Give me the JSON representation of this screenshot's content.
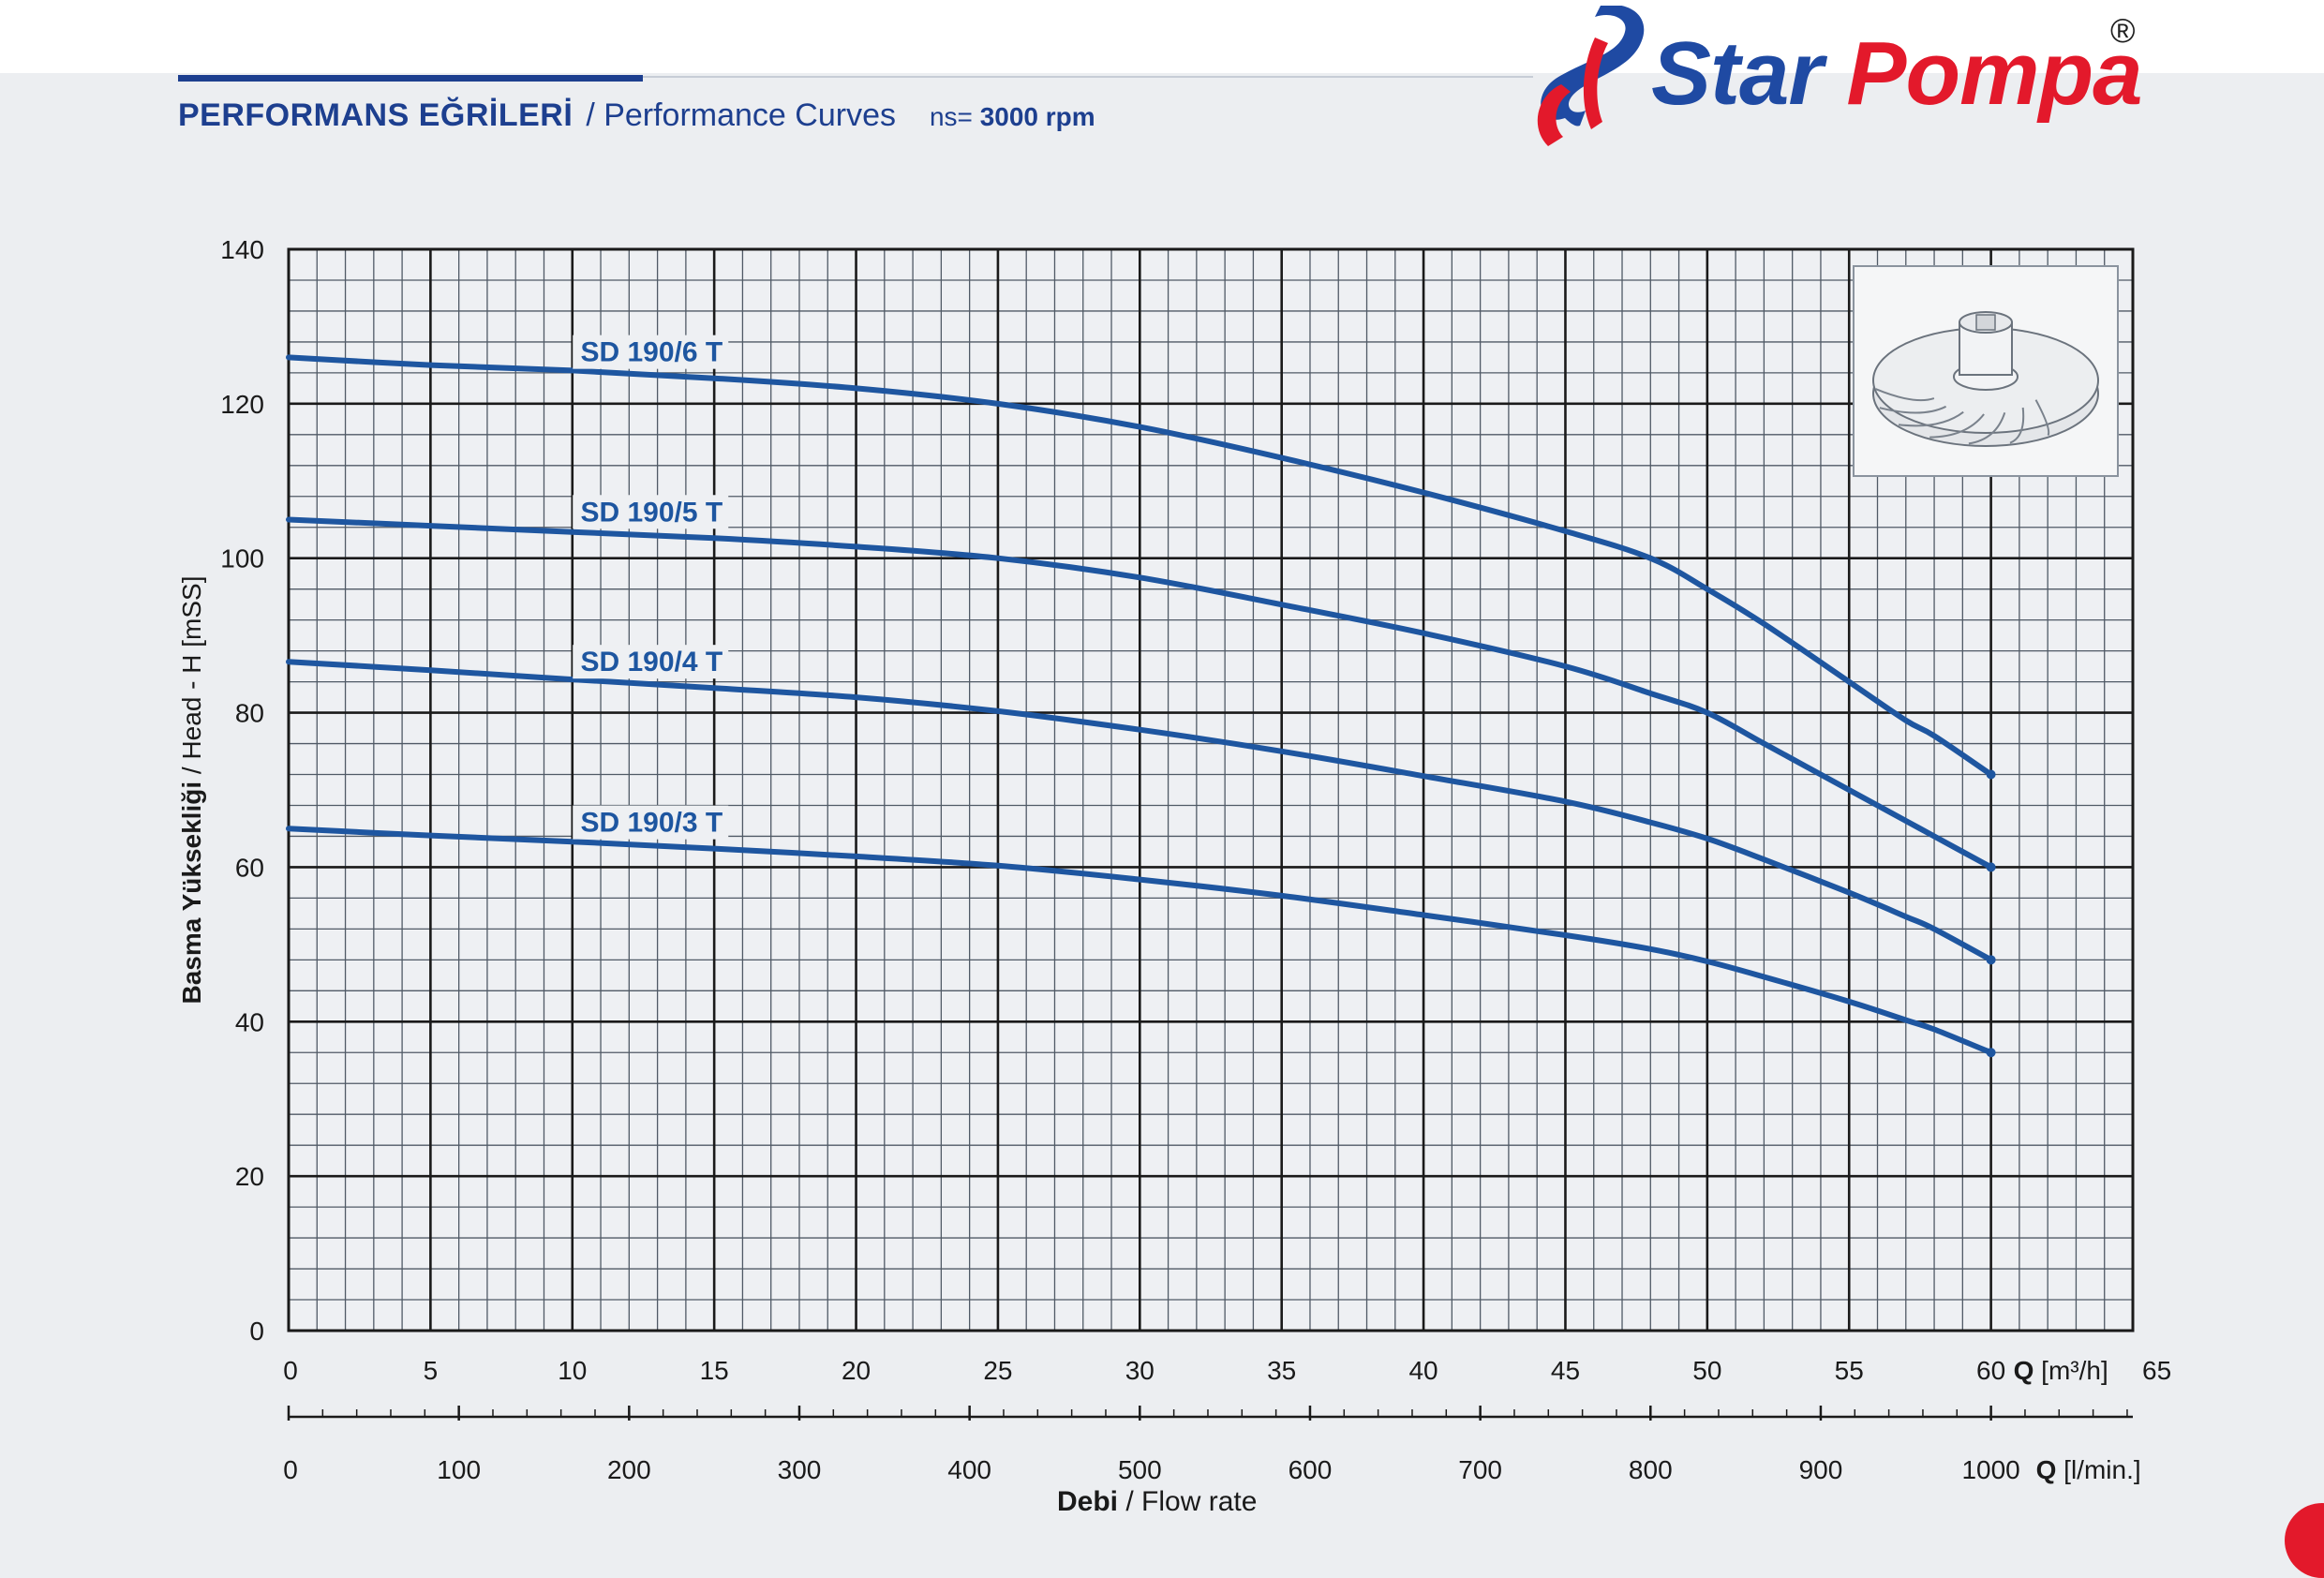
{
  "header": {
    "title_tr": "PERFORMANS EĞRİLERİ",
    "title_en": "/ Performance Curves",
    "speed_label": "ns=",
    "speed_value": "3000 rpm"
  },
  "brand": {
    "name_part1": "Star",
    "name_part2": "Pompa",
    "registered": "®",
    "colors": {
      "blue": "#1f4aa3",
      "red": "#e3192b"
    }
  },
  "inset": {
    "icon": "impeller-icon"
  },
  "chart_data": {
    "type": "line",
    "title": "",
    "ylabel_bold": "Basma Yüksekliği",
    "ylabel_rest": "/ Head - H [mSS]",
    "xlabel_bold": "Debi",
    "xlabel_rest": "/ Flow rate",
    "x_unit_label": "Q",
    "x_unit": "[m³/h]",
    "x2_unit_label": "Q",
    "x2_unit": "[l/min.]",
    "xlim": [
      0,
      65
    ],
    "ylim": [
      0,
      140
    ],
    "x_ticks": [
      0,
      5,
      10,
      15,
      20,
      25,
      30,
      35,
      40,
      45,
      50,
      55,
      60,
      65
    ],
    "y_ticks": [
      0,
      20,
      40,
      60,
      80,
      100,
      120,
      140
    ],
    "x2_ticks": [
      0,
      100,
      200,
      300,
      400,
      500,
      600,
      700,
      800,
      900,
      1000
    ],
    "grid": true,
    "line_color": "#1e56a0",
    "series": [
      {
        "name": "SD 190/6 T",
        "x": [
          0,
          5,
          10,
          15,
          20,
          25,
          30,
          35,
          40,
          45,
          48,
          50,
          52,
          55,
          57,
          58,
          60
        ],
        "y": [
          126,
          125,
          124.3,
          123.3,
          122,
          120,
          117,
          113,
          108.5,
          103.5,
          100,
          96,
          91.5,
          84,
          79,
          77,
          72
        ]
      },
      {
        "name": "SD 190/5 T",
        "x": [
          0,
          5,
          10,
          15,
          20,
          25,
          30,
          35,
          40,
          45,
          48,
          50,
          52,
          55,
          57,
          58,
          60
        ],
        "y": [
          105,
          104.2,
          103.4,
          102.6,
          101.5,
          100,
          97.5,
          94,
          90.3,
          86,
          82.5,
          80,
          76,
          70,
          66,
          64,
          60
        ]
      },
      {
        "name": "SD 190/4 T",
        "x": [
          0,
          5,
          10,
          15,
          20,
          25,
          30,
          35,
          40,
          45,
          48,
          50,
          52,
          55,
          57,
          58,
          60
        ],
        "y": [
          86.6,
          85.5,
          84.3,
          83.2,
          82,
          80.2,
          77.8,
          75,
          71.8,
          68.5,
          65.8,
          63.7,
          61,
          56.7,
          53.6,
          52,
          48
        ]
      },
      {
        "name": "SD 190/3 T",
        "x": [
          0,
          5,
          10,
          15,
          20,
          25,
          30,
          35,
          40,
          45,
          48,
          50,
          52,
          55,
          57,
          58,
          60
        ],
        "y": [
          65,
          64.1,
          63.3,
          62.4,
          61.4,
          60.2,
          58.4,
          56.3,
          53.8,
          51.2,
          49.4,
          47.8,
          45.8,
          42.6,
          40.2,
          39,
          36
        ]
      }
    ]
  }
}
